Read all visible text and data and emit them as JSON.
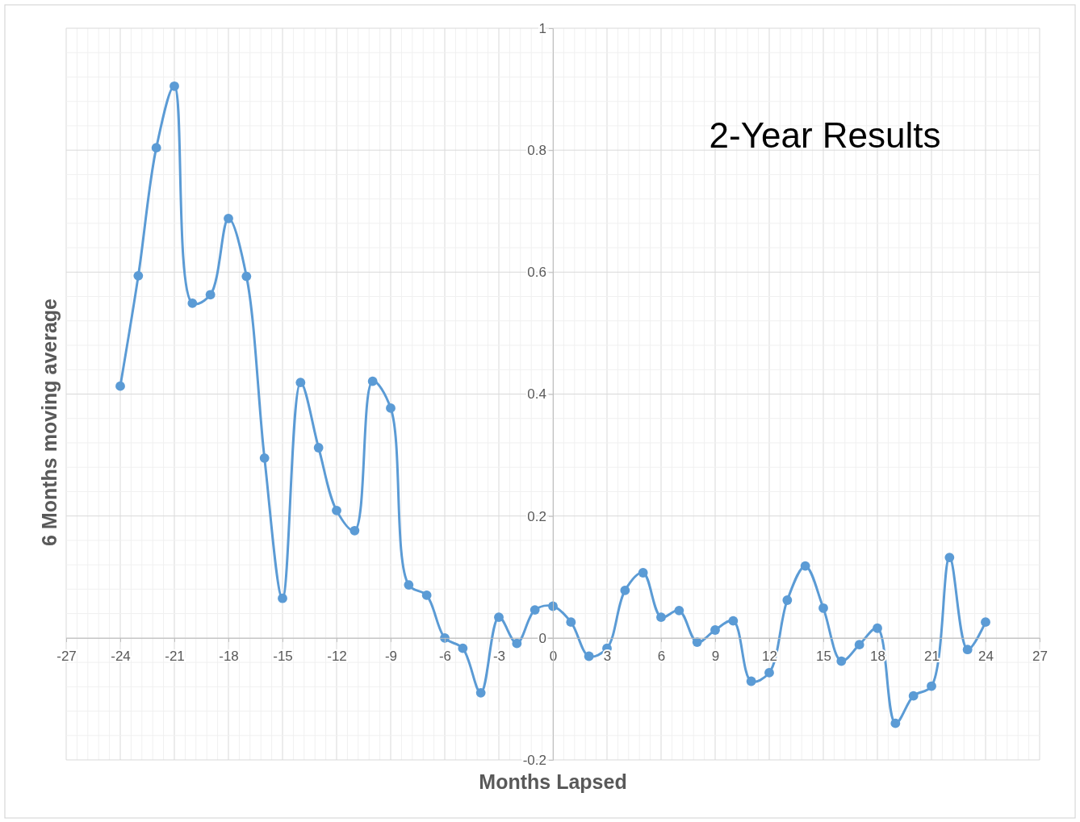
{
  "chart_data": {
    "type": "line",
    "title": "2-Year Results",
    "xlabel": "Months Lapsed",
    "ylabel": "6 Months moving average",
    "x": [
      -24,
      -23,
      -22,
      -21,
      -20,
      -19,
      -18,
      -17,
      -16,
      -15,
      -14,
      -13,
      -12,
      -11,
      -10,
      -9,
      -8,
      -7,
      -6,
      -5,
      -4,
      -3,
      -2,
      -1,
      0,
      1,
      2,
      3,
      4,
      5,
      6,
      7,
      8,
      9,
      10,
      11,
      12,
      13,
      14,
      15,
      16,
      17,
      18,
      19,
      20,
      21,
      22,
      23,
      24
    ],
    "series": [
      {
        "color": "#5b9bd5",
        "values": [
          0.413,
          0.594,
          0.804,
          0.905,
          0.549,
          0.563,
          0.688,
          0.593,
          0.295,
          0.065,
          0.419,
          0.312,
          0.209,
          0.176,
          0.421,
          0.377,
          0.087,
          0.07,
          0.0,
          -0.017,
          -0.09,
          0.034,
          -0.009,
          0.046,
          0.052,
          0.026,
          -0.03,
          -0.017,
          0.078,
          0.107,
          0.034,
          0.045,
          -0.007,
          0.013,
          0.028,
          -0.071,
          -0.057,
          0.062,
          0.118,
          0.049,
          -0.038,
          -0.011,
          0.016,
          -0.14,
          -0.095,
          -0.079,
          0.132,
          -0.019,
          0.026
        ]
      }
    ],
    "xlim": [
      -27,
      27
    ],
    "xticks": [
      -27,
      -24,
      -21,
      -18,
      -15,
      -12,
      -9,
      -6,
      -3,
      0,
      3,
      6,
      9,
      12,
      15,
      18,
      21,
      24,
      27
    ],
    "ylim": [
      -0.2,
      1
    ],
    "yticks": [
      -0.2,
      {
        "value": 0,
        "label": "0"
      },
      0.2,
      0.4,
      0.6,
      0.8,
      1
    ],
    "grid": true,
    "marker": "circle",
    "line_style": "solid"
  }
}
